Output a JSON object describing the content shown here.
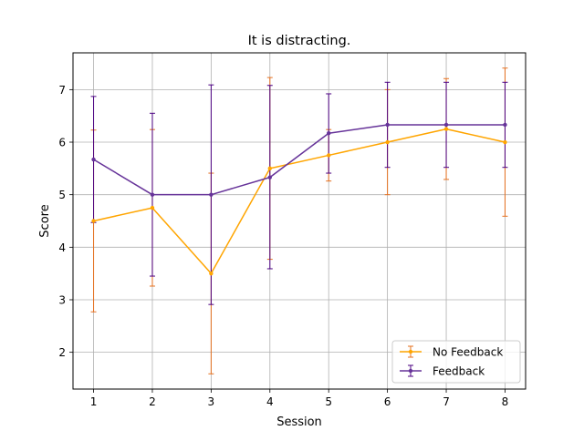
{
  "chart_data": {
    "type": "line",
    "title": "It is distracting.",
    "xlabel": "Session",
    "ylabel": "Score",
    "x": [
      1,
      2,
      3,
      4,
      5,
      6,
      7,
      8
    ],
    "xlim": [
      0.65,
      8.35
    ],
    "ylim": [
      1.3,
      7.7
    ],
    "xticks": [
      1,
      2,
      3,
      4,
      5,
      6,
      7,
      8
    ],
    "yticks": [
      2,
      3,
      4,
      5,
      6,
      7
    ],
    "grid": true,
    "legend_position": "lower right",
    "series": [
      {
        "name": "No Feedback",
        "color": "#ffa500",
        "errorbar_color": "#e5701f",
        "values": [
          4.5,
          4.75,
          3.5,
          5.5,
          5.75,
          6.0,
          6.25,
          6.0
        ],
        "err_low": [
          2.77,
          3.26,
          1.59,
          3.77,
          5.26,
          5.0,
          5.29,
          4.59
        ],
        "err_high": [
          6.23,
          6.24,
          5.41,
          7.23,
          6.24,
          7.0,
          7.21,
          7.41
        ]
      },
      {
        "name": "Feedback",
        "color": "#663399",
        "errorbar_color": "#4b0082",
        "values": [
          5.67,
          5.0,
          5.0,
          5.33,
          6.17,
          6.33,
          6.33,
          6.33
        ],
        "err_low": [
          4.47,
          3.45,
          2.91,
          3.59,
          5.41,
          5.52,
          5.52,
          5.52
        ],
        "err_high": [
          6.87,
          6.55,
          7.09,
          7.08,
          6.92,
          7.14,
          7.14,
          7.14
        ]
      }
    ]
  }
}
